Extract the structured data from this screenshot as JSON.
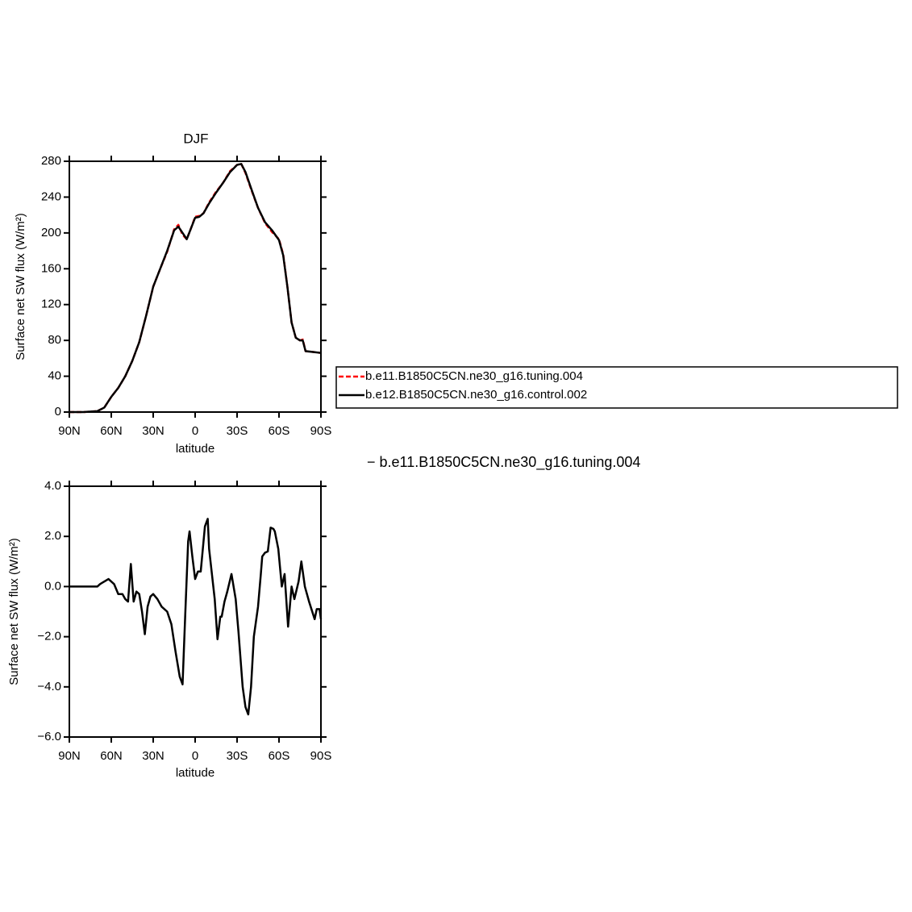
{
  "chart_data": [
    {
      "type": "line",
      "title": "DJF",
      "y_label": "Surface net SW flux (W/m²)",
      "x_label": "latitude",
      "x": [
        90,
        80,
        70,
        65,
        60,
        55,
        50,
        45,
        40,
        35,
        30,
        25,
        20,
        15,
        12,
        9,
        6,
        3,
        0,
        -3,
        -6,
        -10,
        -15,
        -20,
        -25,
        -30,
        -33,
        -36,
        -40,
        -45,
        -50,
        -55,
        -60,
        -63,
        -66,
        -69,
        -72,
        -75,
        -77,
        -79,
        -85,
        -90
      ],
      "series": [
        {
          "name": "b.e11.B1850C5CN.ne30_g16.tuning.004",
          "color": "#ff0000",
          "line_style": "dashed",
          "values": [
            0,
            0,
            1,
            5,
            17,
            27,
            40,
            57,
            78,
            108,
            140,
            160,
            179,
            204,
            209,
            198,
            193,
            205,
            218,
            219,
            222,
            234,
            246,
            256,
            269,
            276,
            277,
            267,
            249,
            228,
            211,
            201,
            193,
            176,
            140,
            100,
            83,
            80,
            81,
            68,
            67,
            66
          ]
        },
        {
          "name": "b.e12.B1850C5CN.ne30_g16.control.002",
          "color": "#000000",
          "line_style": "solid",
          "values": [
            0,
            0,
            1,
            5,
            17,
            27,
            40,
            57,
            78,
            108,
            140,
            160,
            180,
            203,
            207,
            200,
            193,
            205,
            217,
            218,
            222,
            233,
            245,
            256,
            268,
            276,
            277,
            268,
            250,
            228,
            212,
            203,
            192,
            175,
            140,
            100,
            83,
            80,
            80,
            68,
            67,
            66
          ]
        }
      ],
      "xlim": [
        90,
        -90
      ],
      "xticks": [
        {
          "value": 90,
          "label": "90N"
        },
        {
          "value": 60,
          "label": "60N"
        },
        {
          "value": 30,
          "label": "30N"
        },
        0,
        {
          "value": -30,
          "label": "30S"
        },
        {
          "value": -60,
          "label": "60S"
        },
        {
          "value": -90,
          "label": "90S"
        }
      ],
      "ylim": [
        0,
        280
      ],
      "yticks": [
        0,
        40,
        80,
        120,
        160,
        200,
        240,
        280
      ]
    },
    {
      "type": "line",
      "annotation": "− b.e11.B1850C5CN.ne30_g16.tuning.004",
      "y_label": "Surface net SW flux (W/m²)",
      "x_label": "latitude",
      "x": [
        90,
        80,
        70,
        68,
        65,
        62,
        58,
        55,
        52,
        50,
        48,
        46,
        44,
        42,
        40,
        38,
        36,
        34,
        32,
        30,
        27,
        24,
        20,
        17,
        14,
        11,
        9,
        7,
        5,
        4,
        2,
        0,
        -2,
        -4,
        -7,
        -9,
        -10,
        -12,
        -14,
        -16,
        -18,
        -19,
        -21,
        -23,
        -26,
        -29,
        -31,
        -34,
        -36,
        -38,
        -40,
        -42,
        -45,
        -47,
        -48,
        -50,
        -52,
        -54,
        -56,
        -57,
        -59.5,
        -62,
        -64,
        -66.5,
        -69,
        -71,
        -74,
        -76,
        -78.5,
        -81.5,
        -85.5,
        -87,
        -89,
        -90
      ],
      "values": [
        0,
        0,
        0,
        0.1,
        0.2,
        0.3,
        0.1,
        -0.3,
        -0.3,
        -0.5,
        -0.6,
        0.9,
        -0.6,
        -0.2,
        -0.3,
        -1.0,
        -1.9,
        -0.8,
        -0.4,
        -0.3,
        -0.5,
        -0.8,
        -1.0,
        -1.5,
        -2.6,
        -3.6,
        -3.9,
        -1.0,
        1.8,
        2.2,
        1.2,
        0.3,
        0.6,
        0.6,
        2.4,
        2.7,
        1.5,
        0.5,
        -0.5,
        -2.1,
        -1.2,
        -1.2,
        -0.6,
        -0.2,
        0.5,
        -0.5,
        -1.8,
        -4.0,
        -4.8,
        -5.1,
        -4.0,
        -2.0,
        -0.8,
        0.5,
        1.2,
        1.35,
        1.4,
        2.35,
        2.3,
        2.2,
        1.5,
        0.0,
        0.5,
        -1.6,
        0.0,
        -0.5,
        0.2,
        1.0,
        0.0,
        -0.6,
        -1.3,
        -0.9,
        -0.9,
        -1.3
      ],
      "color": "#000000",
      "xlim": [
        90,
        -90
      ],
      "xticks": [
        {
          "value": 90,
          "label": "90N"
        },
        {
          "value": 60,
          "label": "60N"
        },
        {
          "value": 30,
          "label": "30N"
        },
        0,
        {
          "value": -30,
          "label": "30S"
        },
        {
          "value": -60,
          "label": "60S"
        },
        {
          "value": -90,
          "label": "90S"
        }
      ],
      "ylim": [
        -6,
        4
      ],
      "yticks": [
        {
          "value": -6,
          "label": "−6.0"
        },
        {
          "value": -4,
          "label": "−4.0"
        },
        {
          "value": -2,
          "label": "−2.0"
        },
        {
          "value": 0,
          "label": "0.0"
        },
        {
          "value": 2,
          "label": "2.0"
        },
        {
          "value": 4,
          "label": "4.0"
        }
      ]
    }
  ]
}
